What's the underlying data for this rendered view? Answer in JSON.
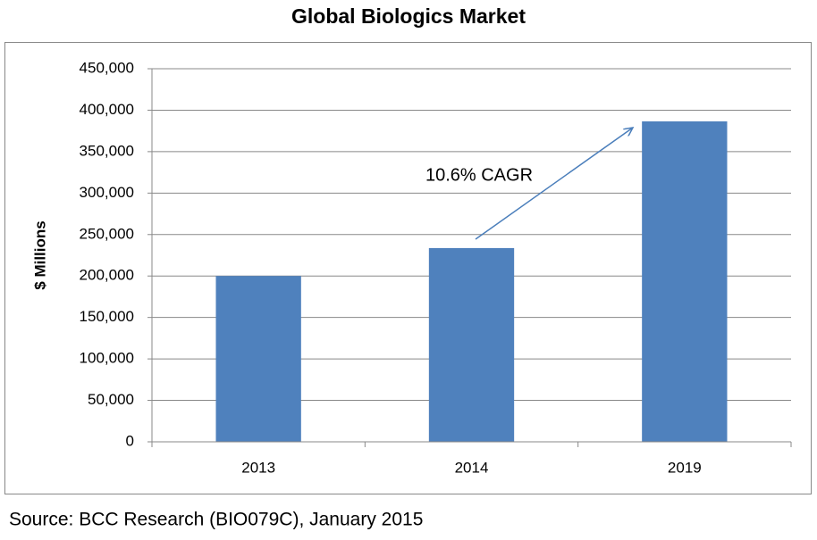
{
  "chart_data": {
    "type": "bar",
    "title": "Global Biologics Market",
    "y_label": "$ Millions",
    "annotation": "10.6% CAGR",
    "source": "Source: BCC Research (BIO079C), January 2015",
    "categories": [
      "2013",
      "2014",
      "2019"
    ],
    "values": [
      200000,
      233700,
      386500
    ],
    "color": "#4f81bd",
    "ylim": [
      0,
      450000
    ],
    "yticks": [
      0,
      {
        "value": 50000,
        "label": "50,000"
      },
      {
        "value": 100000,
        "label": "100,000"
      },
      {
        "value": 150000,
        "label": "150,000"
      },
      {
        "value": 200000,
        "label": "200,000"
      },
      {
        "value": 250000,
        "label": "250,000"
      },
      {
        "value": 300000,
        "label": "300,000"
      },
      {
        "value": 350000,
        "label": "350,000"
      },
      {
        "value": 400000,
        "label": "400,000"
      },
      {
        "value": 450000,
        "label": "450,000"
      }
    ],
    "grid": true
  }
}
